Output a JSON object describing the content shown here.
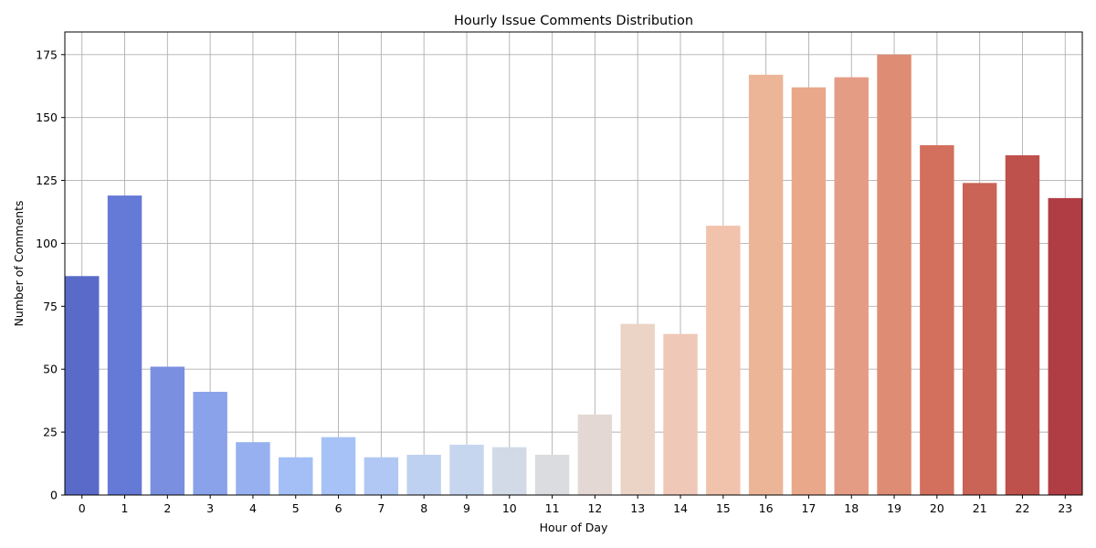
{
  "chart_data": {
    "type": "bar",
    "title": "Hourly Issue Comments Distribution",
    "xlabel": "Hour of Day",
    "ylabel": "Number of Comments",
    "categories": [
      "0",
      "1",
      "2",
      "3",
      "4",
      "5",
      "6",
      "7",
      "8",
      "9",
      "10",
      "11",
      "12",
      "13",
      "14",
      "15",
      "16",
      "17",
      "18",
      "19",
      "20",
      "21",
      "22",
      "23"
    ],
    "values": [
      87,
      119,
      51,
      41,
      21,
      15,
      23,
      15,
      16,
      20,
      19,
      16,
      32,
      68,
      64,
      107,
      167,
      162,
      166,
      175,
      139,
      124,
      135,
      118
    ],
    "colors": [
      "#5a6ac8",
      "#6579d6",
      "#7a8fe0",
      "#8aa2ea",
      "#97b1f0",
      "#a3bff5",
      "#a7c2f7",
      "#b2c8f4",
      "#bfd1f0",
      "#c7d6ef",
      "#d1dae6",
      "#dbdcdf",
      "#e4d8d4",
      "#ebd3c6",
      "#efc8b8",
      "#f1c2ac",
      "#ecb597",
      "#e9a88a",
      "#e59c84",
      "#de8c73",
      "#d2705d",
      "#c96456",
      "#bf514c",
      "#b13d44"
    ],
    "ylim": [
      0,
      184
    ],
    "yticks": [
      0,
      25,
      50,
      75,
      100,
      125,
      150,
      175
    ],
    "grid": true,
    "legend": "none"
  }
}
